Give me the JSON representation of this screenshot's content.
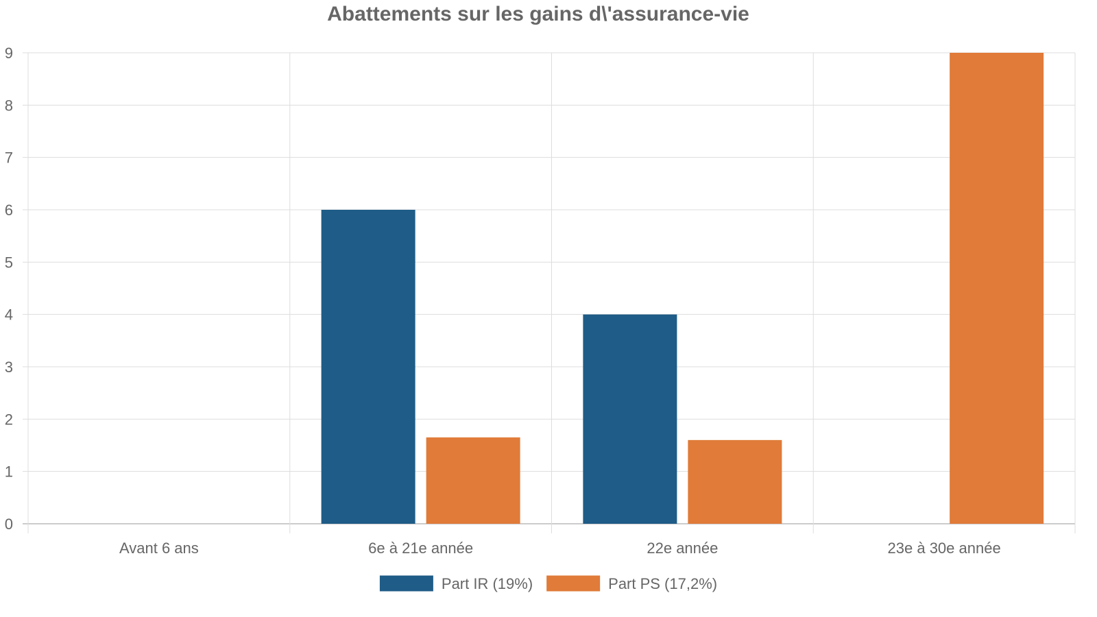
{
  "chart_data": {
    "type": "bar",
    "title": "Abattements sur les gains d\\'assurance-vie",
    "xlabel": "",
    "ylabel": "",
    "categories": [
      "Avant 6 ans",
      "6e à 21e année",
      "22e année",
      "23e à 30e année"
    ],
    "series": [
      {
        "name": "Part IR (19%)",
        "color": "#1f5c87",
        "values": [
          0,
          6,
          4,
          0
        ]
      },
      {
        "name": "Part PS (17,2%)",
        "color": "#e07b39",
        "values": [
          0,
          1.65,
          1.6,
          9
        ]
      }
    ],
    "ylim": [
      0,
      9
    ],
    "yticks": [
      "0",
      "1",
      "2",
      "3",
      "4",
      "5",
      "6",
      "7",
      "8",
      "9"
    ],
    "grid": true,
    "legend_position": "bottom-center",
    "colors": {
      "grid": "#dddddd",
      "axis": "#cccccc",
      "text": "#666666"
    }
  }
}
